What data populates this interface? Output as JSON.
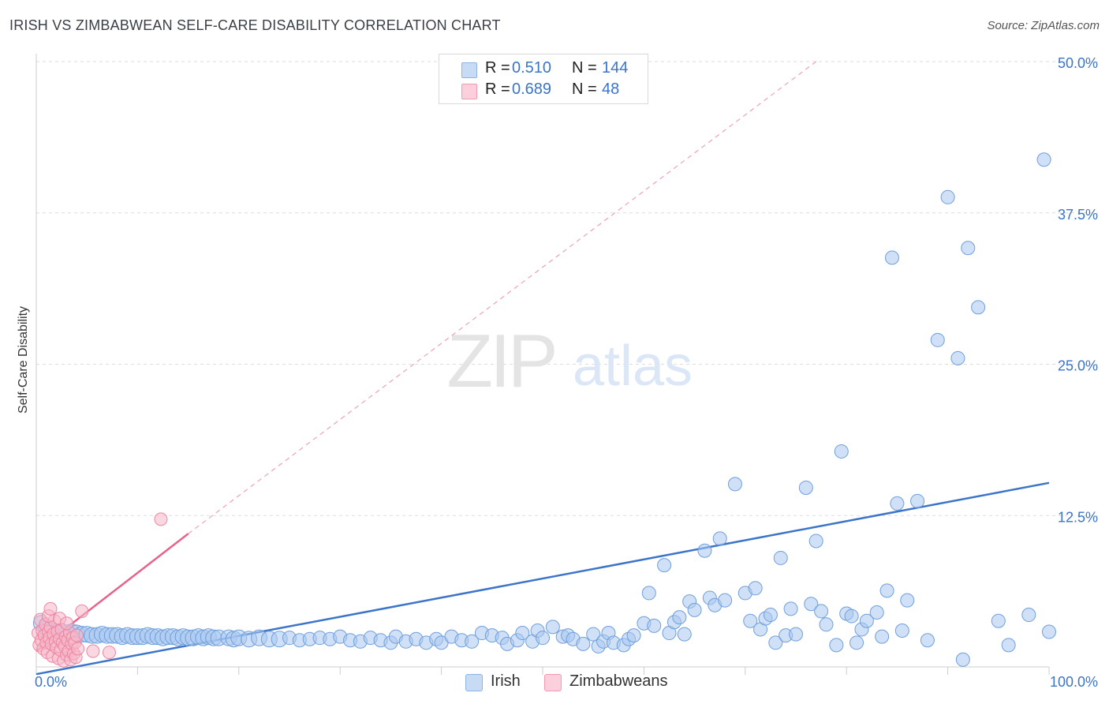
{
  "header": {
    "title": "IRISH VS ZIMBABWEAN SELF-CARE DISABILITY CORRELATION CHART",
    "source": "Source: ZipAtlas.com"
  },
  "watermark": {
    "zip": "ZIP",
    "atlas": "atlas"
  },
  "legend_top": {
    "rows": [
      {
        "r_label": "R =",
        "r_value": "0.510",
        "n_label": "N =",
        "n_value": "144",
        "color": "#aac8f0"
      },
      {
        "r_label": "R =",
        "r_value": "0.689",
        "n_label": "N =",
        "n_value": "48",
        "color": "#f7b8c8"
      }
    ]
  },
  "legend_bottom": {
    "items": [
      {
        "label": "Irish",
        "color": "#aac8f0"
      },
      {
        "label": "Zimbabweans",
        "color": "#f7b8c8"
      }
    ]
  },
  "chart_data": {
    "type": "scatter",
    "title": "IRISH VS ZIMBABWEAN SELF-CARE DISABILITY CORRELATION CHART",
    "xlabel": "",
    "ylabel": "Self-Care Disability",
    "xlim": [
      0,
      100
    ],
    "ylim": [
      0,
      50
    ],
    "x_tick_labels": [
      "0.0%",
      "100.0%"
    ],
    "y_ticks": [
      12.5,
      25.0,
      37.5,
      50.0
    ],
    "y_tick_labels": [
      "12.5%",
      "25.0%",
      "37.5%",
      "50.0%"
    ],
    "grid": "horizontal dashed",
    "legend_position": "top-center",
    "colors": {
      "irish": "#3b74c9",
      "irish_fill": "#aac8f0",
      "zimbabwean": "#e8628a",
      "zimbabwean_fill": "#f7b8c8"
    },
    "series": [
      {
        "name": "Irish",
        "trend": {
          "x": [
            0,
            100
          ],
          "y": [
            -0.6,
            15.2
          ]
        },
        "points": [
          [
            0.5,
            3.6
          ],
          [
            1.0,
            3.2
          ],
          [
            1.5,
            3.0
          ],
          [
            2.0,
            2.9
          ],
          [
            2.5,
            2.9
          ],
          [
            3.0,
            2.8
          ],
          [
            3.5,
            2.9
          ],
          [
            4.0,
            2.8
          ],
          [
            4.5,
            2.7
          ],
          [
            5.0,
            2.7
          ],
          [
            5.5,
            2.6
          ],
          [
            6.0,
            2.6
          ],
          [
            6.5,
            2.7
          ],
          [
            7.0,
            2.6
          ],
          [
            7.5,
            2.6
          ],
          [
            8.0,
            2.6
          ],
          [
            8.5,
            2.5
          ],
          [
            9.0,
            2.6
          ],
          [
            9.5,
            2.5
          ],
          [
            10.0,
            2.5
          ],
          [
            10.5,
            2.5
          ],
          [
            11.0,
            2.6
          ],
          [
            11.5,
            2.5
          ],
          [
            12.0,
            2.5
          ],
          [
            12.5,
            2.4
          ],
          [
            13.0,
            2.5
          ],
          [
            13.5,
            2.5
          ],
          [
            14.0,
            2.4
          ],
          [
            14.5,
            2.5
          ],
          [
            15.0,
            2.4
          ],
          [
            15.5,
            2.4
          ],
          [
            16.0,
            2.5
          ],
          [
            16.5,
            2.4
          ],
          [
            17.0,
            2.5
          ],
          [
            17.5,
            2.4
          ],
          [
            18.0,
            2.4
          ],
          [
            19.0,
            2.4
          ],
          [
            19.5,
            2.3
          ],
          [
            20.0,
            2.4
          ],
          [
            21.0,
            2.3
          ],
          [
            22.0,
            2.4
          ],
          [
            23.0,
            2.3
          ],
          [
            24.0,
            2.3
          ],
          [
            25.0,
            2.4
          ],
          [
            26.0,
            2.2
          ],
          [
            27.0,
            2.3
          ],
          [
            28.0,
            2.4
          ],
          [
            29.0,
            2.3
          ],
          [
            30.0,
            2.5
          ],
          [
            31.0,
            2.2
          ],
          [
            32.0,
            2.1
          ],
          [
            33.0,
            2.4
          ],
          [
            34.0,
            2.2
          ],
          [
            35.0,
            2.0
          ],
          [
            35.5,
            2.5
          ],
          [
            36.5,
            2.1
          ],
          [
            37.5,
            2.3
          ],
          [
            38.5,
            2.0
          ],
          [
            39.5,
            2.3
          ],
          [
            40.0,
            2.0
          ],
          [
            41.0,
            2.5
          ],
          [
            42.0,
            2.2
          ],
          [
            43.0,
            2.1
          ],
          [
            44.0,
            2.8
          ],
          [
            45.0,
            2.6
          ],
          [
            46.0,
            2.4
          ],
          [
            46.5,
            1.9
          ],
          [
            47.5,
            2.2
          ],
          [
            48.0,
            2.8
          ],
          [
            49.0,
            2.1
          ],
          [
            49.5,
            3.0
          ],
          [
            50.0,
            2.4
          ],
          [
            51.0,
            3.3
          ],
          [
            52.0,
            2.5
          ],
          [
            52.5,
            2.6
          ],
          [
            53.0,
            2.3
          ],
          [
            54.0,
            1.9
          ],
          [
            55.0,
            2.7
          ],
          [
            55.5,
            1.7
          ],
          [
            56.0,
            2.1
          ],
          [
            56.5,
            2.8
          ],
          [
            57.0,
            2.0
          ],
          [
            58.0,
            1.8
          ],
          [
            58.5,
            2.3
          ],
          [
            59.0,
            2.6
          ],
          [
            60.0,
            3.6
          ],
          [
            60.5,
            6.1
          ],
          [
            61.0,
            3.4
          ],
          [
            62.0,
            8.4
          ],
          [
            62.5,
            2.8
          ],
          [
            63.0,
            3.7
          ],
          [
            63.5,
            4.1
          ],
          [
            64.0,
            2.7
          ],
          [
            64.5,
            5.4
          ],
          [
            65.0,
            4.7
          ],
          [
            66.0,
            9.6
          ],
          [
            66.5,
            5.7
          ],
          [
            67.0,
            5.1
          ],
          [
            67.5,
            10.6
          ],
          [
            68.0,
            5.5
          ],
          [
            69.0,
            15.1
          ],
          [
            70.0,
            6.1
          ],
          [
            70.5,
            3.8
          ],
          [
            71.0,
            6.5
          ],
          [
            71.5,
            3.1
          ],
          [
            72.0,
            4.0
          ],
          [
            72.5,
            4.3
          ],
          [
            73.0,
            2.0
          ],
          [
            73.5,
            9.0
          ],
          [
            74.0,
            2.6
          ],
          [
            74.5,
            4.8
          ],
          [
            75.0,
            2.7
          ],
          [
            76.0,
            14.8
          ],
          [
            76.5,
            5.2
          ],
          [
            77.0,
            10.4
          ],
          [
            78.0,
            3.5
          ],
          [
            79.0,
            1.8
          ],
          [
            79.5,
            17.8
          ],
          [
            80.0,
            4.4
          ],
          [
            80.5,
            4.2
          ],
          [
            81.0,
            2.0
          ],
          [
            81.5,
            3.1
          ],
          [
            82.0,
            3.8
          ],
          [
            83.0,
            4.5
          ],
          [
            84.0,
            6.3
          ],
          [
            84.5,
            33.8
          ],
          [
            85.0,
            13.5
          ],
          [
            85.5,
            3.0
          ],
          [
            86.0,
            5.5
          ],
          [
            87.0,
            13.7
          ],
          [
            88.0,
            2.2
          ],
          [
            89.0,
            27.0
          ],
          [
            90.0,
            38.8
          ],
          [
            91.0,
            25.5
          ],
          [
            92.0,
            34.6
          ],
          [
            93.0,
            29.7
          ],
          [
            95.0,
            3.8
          ],
          [
            96.0,
            1.8
          ],
          [
            98.0,
            4.3
          ],
          [
            99.5,
            41.9
          ],
          [
            100.0,
            2.9
          ],
          [
            91.5,
            0.6
          ],
          [
            83.5,
            2.5
          ],
          [
            77.5,
            4.6
          ]
        ]
      },
      {
        "name": "Zimbabweans",
        "trend": {
          "x": [
            0,
            15
          ],
          "y": [
            1.3,
            11.0
          ]
        },
        "trend_extended": {
          "x": [
            15,
            77
          ],
          "y": [
            11.0,
            50.0
          ]
        },
        "points": [
          [
            0.2,
            2.8
          ],
          [
            0.3,
            1.8
          ],
          [
            0.4,
            3.9
          ],
          [
            0.5,
            2.2
          ],
          [
            0.6,
            3.0
          ],
          [
            0.7,
            1.5
          ],
          [
            0.8,
            2.6
          ],
          [
            0.9,
            3.5
          ],
          [
            1.0,
            2.0
          ],
          [
            1.1,
            1.2
          ],
          [
            1.2,
            2.9
          ],
          [
            1.3,
            2.4
          ],
          [
            1.4,
            3.3
          ],
          [
            1.5,
            1.9
          ],
          [
            1.6,
            0.9
          ],
          [
            1.7,
            2.7
          ],
          [
            1.8,
            3.8
          ],
          [
            1.9,
            2.1
          ],
          [
            2.0,
            1.6
          ],
          [
            2.1,
            2.9
          ],
          [
            2.2,
            0.7
          ],
          [
            2.3,
            2.3
          ],
          [
            2.4,
            1.4
          ],
          [
            2.5,
            3.1
          ],
          [
            2.6,
            2.0
          ],
          [
            2.7,
            0.5
          ],
          [
            2.8,
            1.7
          ],
          [
            2.9,
            2.5
          ],
          [
            3.0,
            1.0
          ],
          [
            3.1,
            2.2
          ],
          [
            3.2,
            1.3
          ],
          [
            3.3,
            2.8
          ],
          [
            3.4,
            0.6
          ],
          [
            3.5,
            1.9
          ],
          [
            3.6,
            2.4
          ],
          [
            3.7,
            1.1
          ],
          [
            3.8,
            2.0
          ],
          [
            3.9,
            0.8
          ],
          [
            4.0,
            2.6
          ],
          [
            4.1,
            1.5
          ],
          [
            1.2,
            4.2
          ],
          [
            1.4,
            4.8
          ],
          [
            2.3,
            4.0
          ],
          [
            3.0,
            3.6
          ],
          [
            4.5,
            4.6
          ],
          [
            5.6,
            1.3
          ],
          [
            7.2,
            1.2
          ],
          [
            12.3,
            12.2
          ]
        ]
      }
    ]
  }
}
